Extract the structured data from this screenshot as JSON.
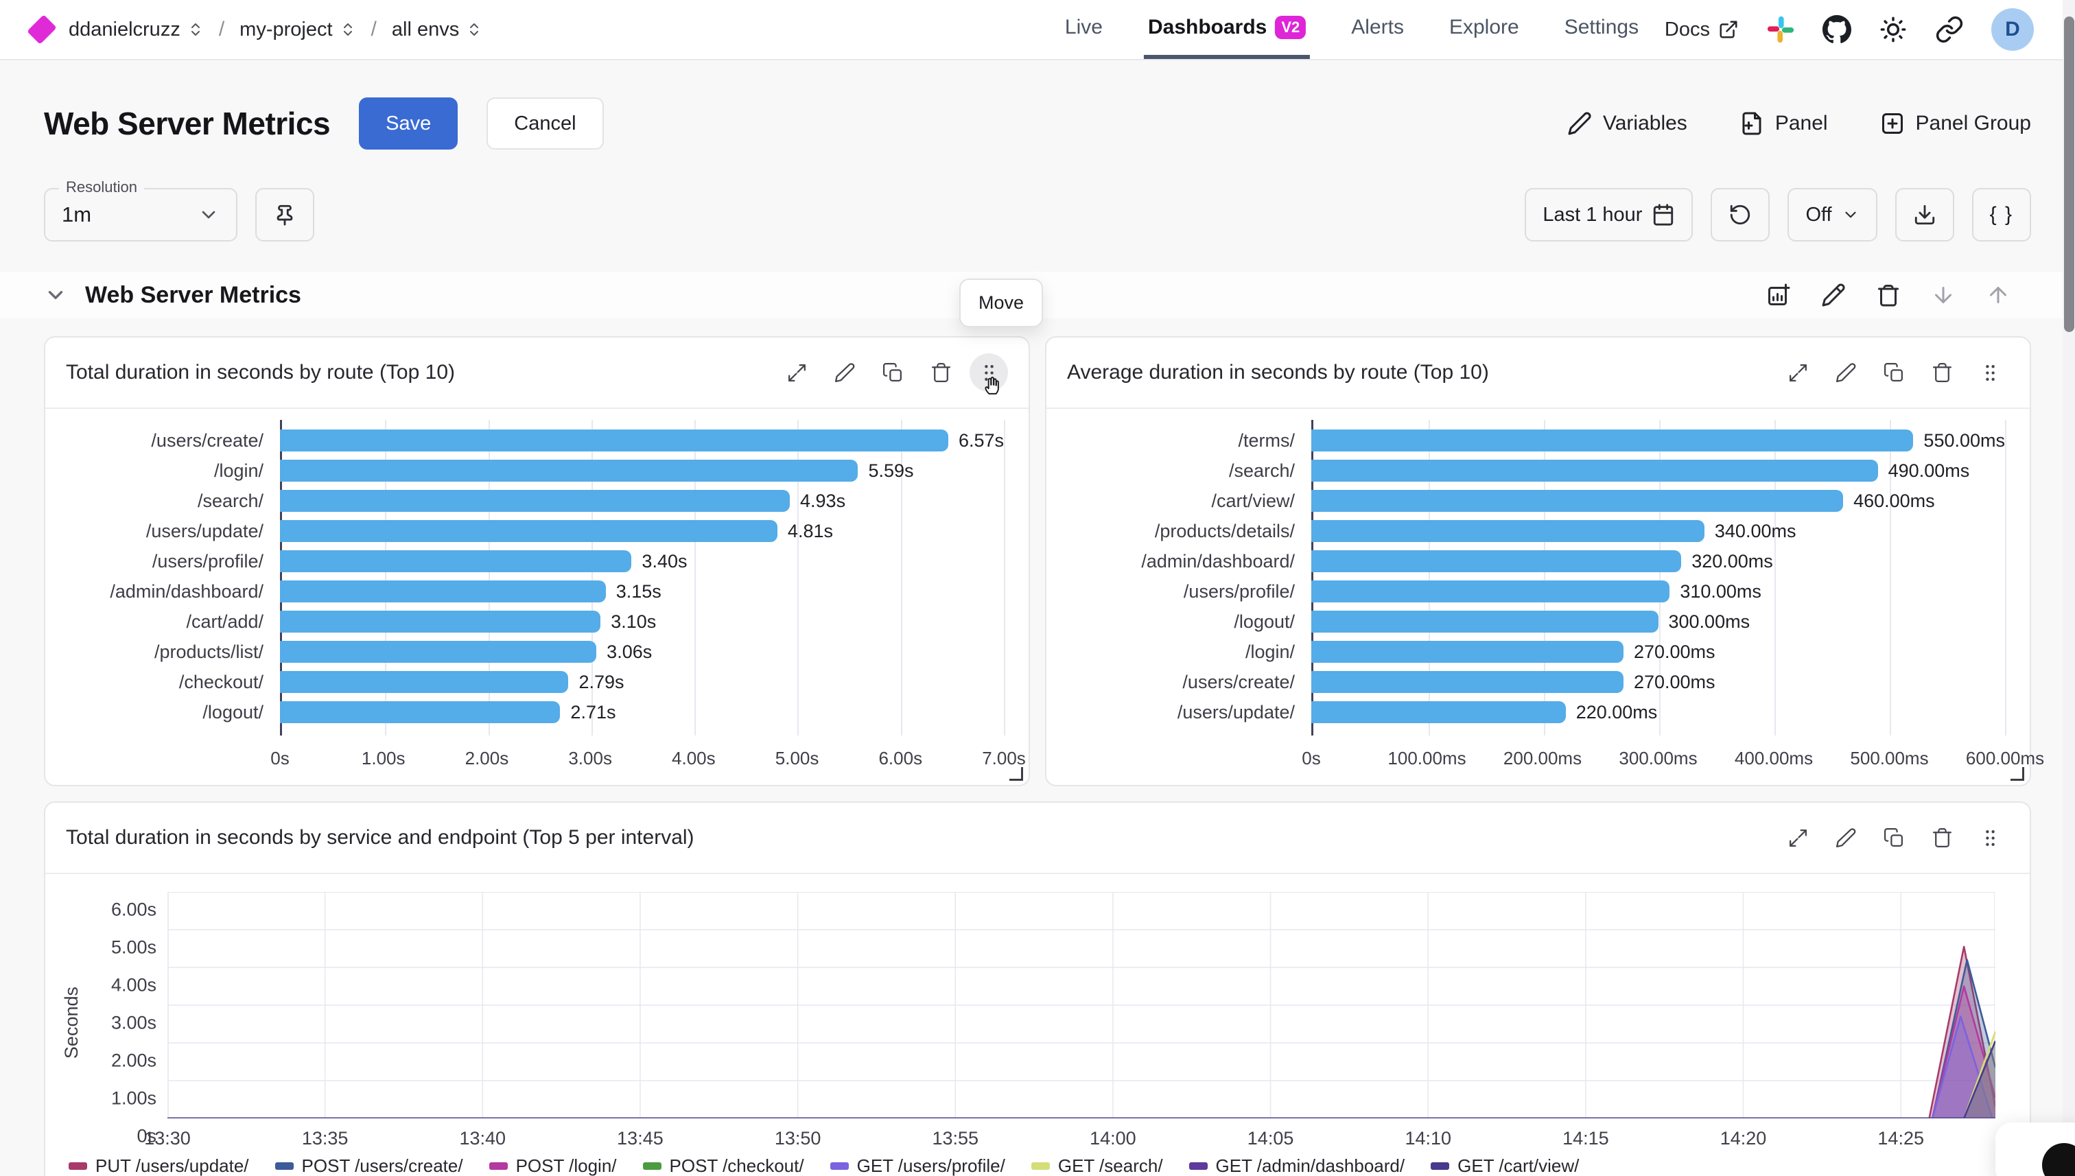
{
  "colors": {
    "accent_blue": "#3a6bd3",
    "fuchsia": "#de25d8",
    "bar_blue": "#54ace8",
    "active_tab_underline": "#49566b"
  },
  "topnav": {
    "breadcrumb": {
      "org": "ddanielcruzz",
      "separator": "/",
      "project": "my-project",
      "env": "all envs"
    },
    "tabs": [
      {
        "label": "Live",
        "active": false
      },
      {
        "label": "Dashboards",
        "badge": "V2",
        "active": true
      },
      {
        "label": "Alerts",
        "active": false
      },
      {
        "label": "Explore",
        "active": false
      },
      {
        "label": "Settings",
        "active": false
      }
    ],
    "docs_label": "Docs",
    "avatar_initial": "D"
  },
  "header": {
    "title": "Web Server Metrics",
    "save_label": "Save",
    "cancel_label": "Cancel",
    "variables_label": "Variables",
    "panel_label": "Panel",
    "panel_group_label": "Panel Group"
  },
  "controls": {
    "resolution_label": "Resolution",
    "resolution_value": "1m",
    "time_range": "Last 1 hour",
    "auto_refresh": "Off",
    "braces_button": "{ }"
  },
  "group": {
    "title": "Web Server Metrics",
    "move_tooltip": "Move"
  },
  "chart_data": [
    {
      "type": "bar",
      "orientation": "horizontal",
      "title": "Total duration in seconds by route (Top 10)",
      "categories": [
        "/users/create/",
        "/login/",
        "/search/",
        "/users/update/",
        "/users/profile/",
        "/admin/dashboard/",
        "/cart/add/",
        "/products/list/",
        "/checkout/",
        "/logout/"
      ],
      "values": [
        6.57,
        5.59,
        4.93,
        4.81,
        3.4,
        3.15,
        3.1,
        3.06,
        2.79,
        2.71
      ],
      "value_labels": [
        "6.57s",
        "5.59s",
        "4.93s",
        "4.81s",
        "3.40s",
        "3.15s",
        "3.10s",
        "3.06s",
        "2.79s",
        "2.71s"
      ],
      "xticks": [
        "0s",
        "1.00s",
        "2.00s",
        "3.00s",
        "4.00s",
        "5.00s",
        "6.00s",
        "7.00s"
      ],
      "xlim": [
        0,
        7
      ],
      "bar_color": "#54ace8",
      "label_col_width": 312
    },
    {
      "type": "bar",
      "orientation": "horizontal",
      "title": "Average duration in seconds by route (Top 10)",
      "categories": [
        "/terms/",
        "/search/",
        "/cart/view/",
        "/products/details/",
        "/admin/dashboard/",
        "/users/profile/",
        "/logout/",
        "/login/",
        "/users/create/",
        "/users/update/"
      ],
      "values": [
        550,
        490,
        460,
        340,
        320,
        310,
        300,
        270,
        270,
        220
      ],
      "value_labels": [
        "550.00ms",
        "490.00ms",
        "460.00ms",
        "340.00ms",
        "320.00ms",
        "310.00ms",
        "300.00ms",
        "270.00ms",
        "270.00ms",
        "220.00ms"
      ],
      "xticks": [
        "0s",
        "100.00ms",
        "200.00ms",
        "300.00ms",
        "400.00ms",
        "500.00ms",
        "600.00ms"
      ],
      "xlim": [
        0,
        600
      ],
      "bar_color": "#54ace8",
      "label_col_width": 356
    },
    {
      "type": "area",
      "title": "Total duration in seconds by service and endpoint (Top 5 per interval)",
      "ylabel": "Seconds",
      "yticks": [
        "6.00s",
        "5.00s",
        "4.00s",
        "3.00s",
        "2.00s",
        "1.00s",
        "0s"
      ],
      "ylim": [
        0,
        6
      ],
      "xticks": [
        "13:30",
        "13:35",
        "13:40",
        "13:45",
        "13:50",
        "13:55",
        "14:00",
        "14:05",
        "14:10",
        "14:15",
        "14:20",
        "14:25"
      ],
      "x_total_minutes": 58,
      "tick_step_minutes": 5,
      "grid": true,
      "legend_position": "bottom",
      "series": [
        {
          "name": "PUT /users/update/",
          "color": "#a83a6b",
          "points": [
            [
              0,
              0
            ],
            [
              55.9,
              0
            ],
            [
              57,
              4.55
            ],
            [
              58,
              0.3
            ]
          ]
        },
        {
          "name": "POST /users/create/",
          "color": "#3d5b99",
          "points": [
            [
              0,
              0
            ],
            [
              56,
              0
            ],
            [
              57.1,
              4.2
            ],
            [
              58,
              1.35
            ]
          ]
        },
        {
          "name": "POST /login/",
          "color": "#b23aa0",
          "points": [
            [
              0,
              0
            ],
            [
              56,
              0
            ],
            [
              57,
              3.5
            ],
            [
              58,
              0.55
            ]
          ]
        },
        {
          "name": "POST /checkout/",
          "color": "#4d9b41",
          "points": [
            [
              0,
              0
            ],
            [
              58,
              0
            ]
          ]
        },
        {
          "name": "GET /users/profile/",
          "color": "#7b63e0",
          "points": [
            [
              0,
              0
            ],
            [
              56,
              0
            ],
            [
              56.9,
              2.7
            ],
            [
              57.9,
              0
            ]
          ]
        },
        {
          "name": "GET /search/",
          "color": "#d3de78",
          "points": [
            [
              0,
              0
            ],
            [
              57,
              0
            ],
            [
              58,
              2.3
            ]
          ]
        },
        {
          "name": "GET /admin/dashboard/",
          "color": "#5d3a9b",
          "points": [
            [
              0,
              0
            ],
            [
              58,
              0
            ]
          ]
        },
        {
          "name": "GET /cart/view/",
          "color": "#463b8d",
          "points": [
            [
              0,
              0
            ],
            [
              57,
              0
            ],
            [
              58,
              2.05
            ]
          ]
        }
      ]
    }
  ]
}
